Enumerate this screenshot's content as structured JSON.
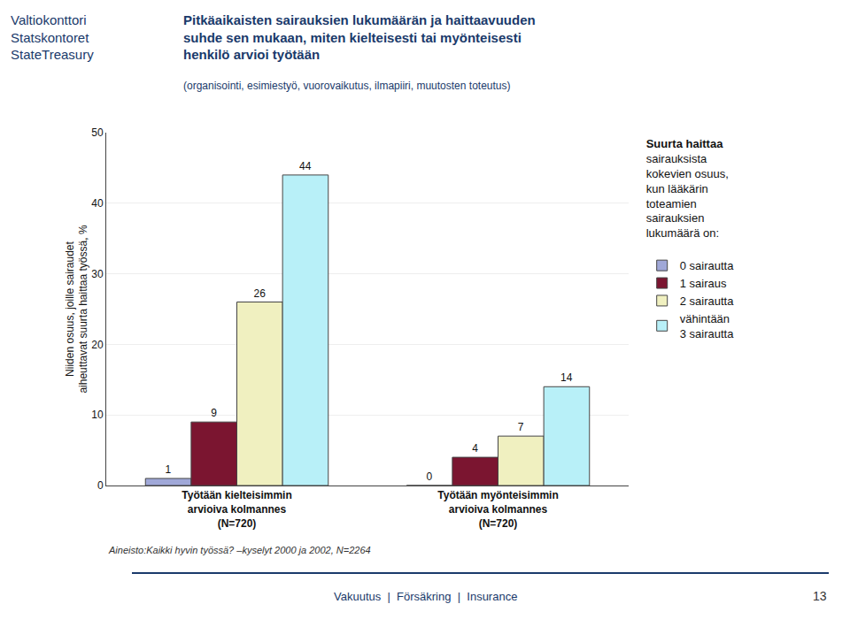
{
  "chart_data": {
    "type": "bar",
    "title": "Pitkäaikaisten sairauksien lukumäärän ja haittaavuuden\nsuhde sen mukaan, miten kielteisesti tai myönteisesti\nhenkilö arvioi työtään",
    "subtitle": "(organisointi, esimiestyö, vuorovaikutus, ilmapiiri, muutosten toteutus)",
    "categories": [
      "Työtään kielteisimmin\narvioiva kolmannes\n(N=720)",
      "Työtään myönteisimmin\narvioiva kolmannes\n(N=720)"
    ],
    "series": [
      {
        "name": "0 sairautta",
        "color": "#a0a8d8",
        "values": [
          1,
          0
        ]
      },
      {
        "name": "1 sairaus",
        "color": "#7b1530",
        "values": [
          9,
          4
        ]
      },
      {
        "name": "2 sairautta",
        "color": "#f0f0c0",
        "values": [
          26,
          7
        ]
      },
      {
        "name": "vähintään\n3 sairautta",
        "color": "#b8f0f8",
        "values": [
          44,
          14
        ]
      }
    ],
    "ylabel": "Niiden osuus, joille sairaudet\naiheuttavat suurta haittaa työssä, %",
    "ylim": [
      0,
      50
    ],
    "yticks": [
      0,
      10,
      20,
      30,
      40,
      50
    ],
    "grid": true,
    "data_labels": true,
    "legend": "right",
    "legend_title": "Suurta haittaa",
    "legend_text": "sairauksista\nkokevien osuus,\nkun lääkärin\ntoteamien\nsairauksien\nlukumäärä on:",
    "logo": [
      "Valtiokonttori",
      "Statskontoret",
      "StateTreasury"
    ],
    "footer": "Aineisto:Kaikki hyvin työssä? –kyselyt 2000 ja 2002, N=2264",
    "bottom_text": "Vakuutus  |  Försäkring  |  Insurance",
    "page_number": "13"
  }
}
